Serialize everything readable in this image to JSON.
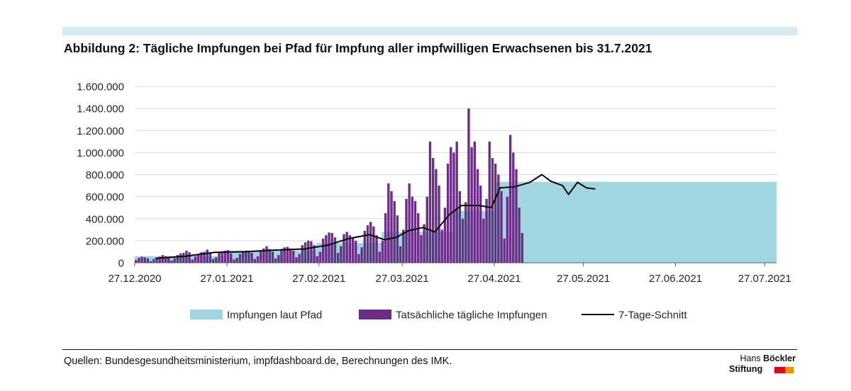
{
  "title": "Abbildung 2: Tägliche Impfungen bei Pfad für Impfung aller impfwilligen Erwachsenen bis 31.7.2021",
  "source": "Quellen: Bundesgesundheitsministerium, impfdashboard.de, Berechnungen des IMK.",
  "logo": {
    "line1_light": "Hans ",
    "line1_bold": "Böckler",
    "line2": "Stiftung"
  },
  "colors": {
    "band": "#d3ecee",
    "path": "#9fd6df",
    "actual": "#6b2d86",
    "avg": "#000000",
    "grid": "#d9d9d9",
    "axis": "#595959",
    "logo_red": "#e30613",
    "logo_orange": "#f39200"
  },
  "chart_data": {
    "type": "bar",
    "xlabel": "",
    "ylabel": "",
    "x_start": "2020-12-27",
    "x_end": "2021-07-31",
    "xticks": [
      "27.12.2020",
      "27.01.2021",
      "27.02.2021",
      "27.03.2021",
      "27.04.2021",
      "27.05.2021",
      "27.06.2021",
      "27.07.2021"
    ],
    "ylim": [
      0,
      1600000
    ],
    "yticks": [
      "0",
      "200.000",
      "400.000",
      "600.000",
      "800.000",
      "1.000.000",
      "1.200.000",
      "1.400.000",
      "1.600.000"
    ],
    "grid": true,
    "legend": {
      "position": "bottom",
      "entries": [
        "Impfungen laut Pfad",
        "Tatsächliche tägliche Impfungen",
        "7-Tage-Schnitt"
      ]
    },
    "path_steps": [
      {
        "from": "2020-12-27",
        "to": "2021-01-26",
        "value": 60000
      },
      {
        "from": "2021-01-26",
        "to": "2021-02-26",
        "value": 110000
      },
      {
        "from": "2021-02-26",
        "to": "2021-03-20",
        "value": 180000
      },
      {
        "from": "2021-03-20",
        "to": "2021-04-13",
        "value": 280000
      },
      {
        "from": "2021-04-13",
        "to": "2021-04-27",
        "value": 470000
      },
      {
        "from": "2021-04-27",
        "to": "2021-07-31",
        "value": 735000
      }
    ],
    "daily": {
      "start": "2020-12-27",
      "values": [
        25000,
        45000,
        55000,
        50000,
        40000,
        15000,
        35000,
        45000,
        55000,
        70000,
        60000,
        55000,
        20000,
        40000,
        70000,
        85000,
        90000,
        110000,
        95000,
        30000,
        60000,
        80000,
        95000,
        100000,
        120000,
        90000,
        35000,
        50000,
        90000,
        105000,
        110000,
        115000,
        85000,
        30000,
        45000,
        80000,
        100000,
        110000,
        105000,
        90000,
        35000,
        60000,
        110000,
        130000,
        150000,
        125000,
        100000,
        40000,
        70000,
        125000,
        140000,
        145000,
        130000,
        110000,
        50000,
        80000,
        160000,
        185000,
        200000,
        195000,
        160000,
        60000,
        100000,
        220000,
        250000,
        275000,
        270000,
        230000,
        90000,
        150000,
        260000,
        280000,
        250000,
        230000,
        200000,
        80000,
        140000,
        290000,
        340000,
        370000,
        330000,
        250000,
        100000,
        200000,
        450000,
        720000,
        650000,
        560000,
        430000,
        150000,
        300000,
        580000,
        720000,
        600000,
        560000,
        450000,
        250000,
        350000,
        600000,
        1100000,
        950000,
        850000,
        700000,
        300000,
        500000,
        900000,
        1050000,
        1000000,
        1100000,
        650000,
        400000,
        550000,
        1400000,
        1050000,
        1100000,
        850000,
        700000,
        400000,
        580000,
        1100000,
        950000,
        900000,
        800000,
        650000,
        220000,
        600000,
        1160000,
        1000000,
        850000,
        500000,
        270000
      ]
    },
    "avg_7": [
      {
        "date": "2021-01-03",
        "value": 40000
      },
      {
        "date": "2021-01-13",
        "value": 60000
      },
      {
        "date": "2021-01-23",
        "value": 95000
      },
      {
        "date": "2021-02-02",
        "value": 100000
      },
      {
        "date": "2021-02-12",
        "value": 115000
      },
      {
        "date": "2021-02-22",
        "value": 125000
      },
      {
        "date": "2021-03-02",
        "value": 160000
      },
      {
        "date": "2021-03-09",
        "value": 220000
      },
      {
        "date": "2021-03-16",
        "value": 255000
      },
      {
        "date": "2021-03-21",
        "value": 210000
      },
      {
        "date": "2021-03-25",
        "value": 230000
      },
      {
        "date": "2021-03-29",
        "value": 290000
      },
      {
        "date": "2021-04-03",
        "value": 320000
      },
      {
        "date": "2021-04-07",
        "value": 280000
      },
      {
        "date": "2021-04-12",
        "value": 440000
      },
      {
        "date": "2021-04-16",
        "value": 520000
      },
      {
        "date": "2021-04-22",
        "value": 520000
      },
      {
        "date": "2021-04-26",
        "value": 500000
      },
      {
        "date": "2021-04-29",
        "value": 680000
      },
      {
        "date": "2021-05-04",
        "value": 690000
      },
      {
        "date": "2021-05-09",
        "value": 730000
      },
      {
        "date": "2021-05-13",
        "value": 800000
      },
      {
        "date": "2021-05-16",
        "value": 740000
      },
      {
        "date": "2021-05-20",
        "value": 700000
      },
      {
        "date": "2021-05-22",
        "value": 620000
      },
      {
        "date": "2021-05-25",
        "value": 730000
      },
      {
        "date": "2021-05-28",
        "value": 680000
      },
      {
        "date": "2021-05-31",
        "value": 670000
      }
    ]
  }
}
